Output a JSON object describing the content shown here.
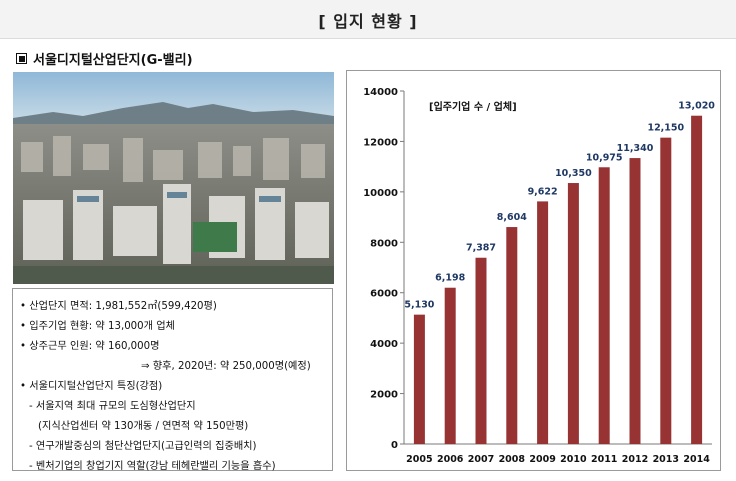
{
  "header": {
    "title": "[ 입지 현황 ]"
  },
  "section": {
    "title": "서울디지털산업단지(G-밸리)"
  },
  "photo": {
    "alt": "aerial city photo"
  },
  "info": {
    "items": [
      "• 산업단지 면적: 1,981,552㎡(599,420평)",
      "• 입주기업 현황: 약 13,000개 업체",
      "• 상주근무 인원: 약 160,000명",
      "⇒ 향후, 2020년: 약 250,000명(예정)",
      "• 서울디지털산업단지 특징(강점)",
      "- 서울지역 최대 규모의 도심형산업단지",
      "(지식산업센터 약 130개동 / 연면적 약 150만평)",
      "- 연구개발중심의 첨단산업단지(고급인력의 집중배치)",
      "- 벤처기업의 창업기지 역할(강남 테헤란밸리 기능을 흡수)"
    ]
  },
  "chart_data": {
    "type": "bar",
    "title": "[입주기업 수 / 업체]",
    "categories": [
      "2005",
      "2006",
      "2007",
      "2008",
      "2009",
      "2010",
      "2011",
      "2012",
      "2013",
      "2014"
    ],
    "series": [
      {
        "values": [
          5130,
          6198,
          7387,
          8604,
          9622,
          10350,
          10975,
          11340,
          12150,
          13020
        ]
      }
    ],
    "data_labels": [
      "5,130",
      "6,198",
      "7,387",
      "8,604",
      "9,622",
      "10,350",
      "10,975",
      "11,340",
      "12,150",
      "13,020"
    ],
    "ylim": [
      0,
      14000
    ],
    "yticks": [
      0,
      2000,
      4000,
      6000,
      8000,
      10000,
      12000,
      14000
    ],
    "bar_color": "#973333",
    "label_color": "#1f3864",
    "grid": false,
    "xlabel": "",
    "ylabel": ""
  }
}
